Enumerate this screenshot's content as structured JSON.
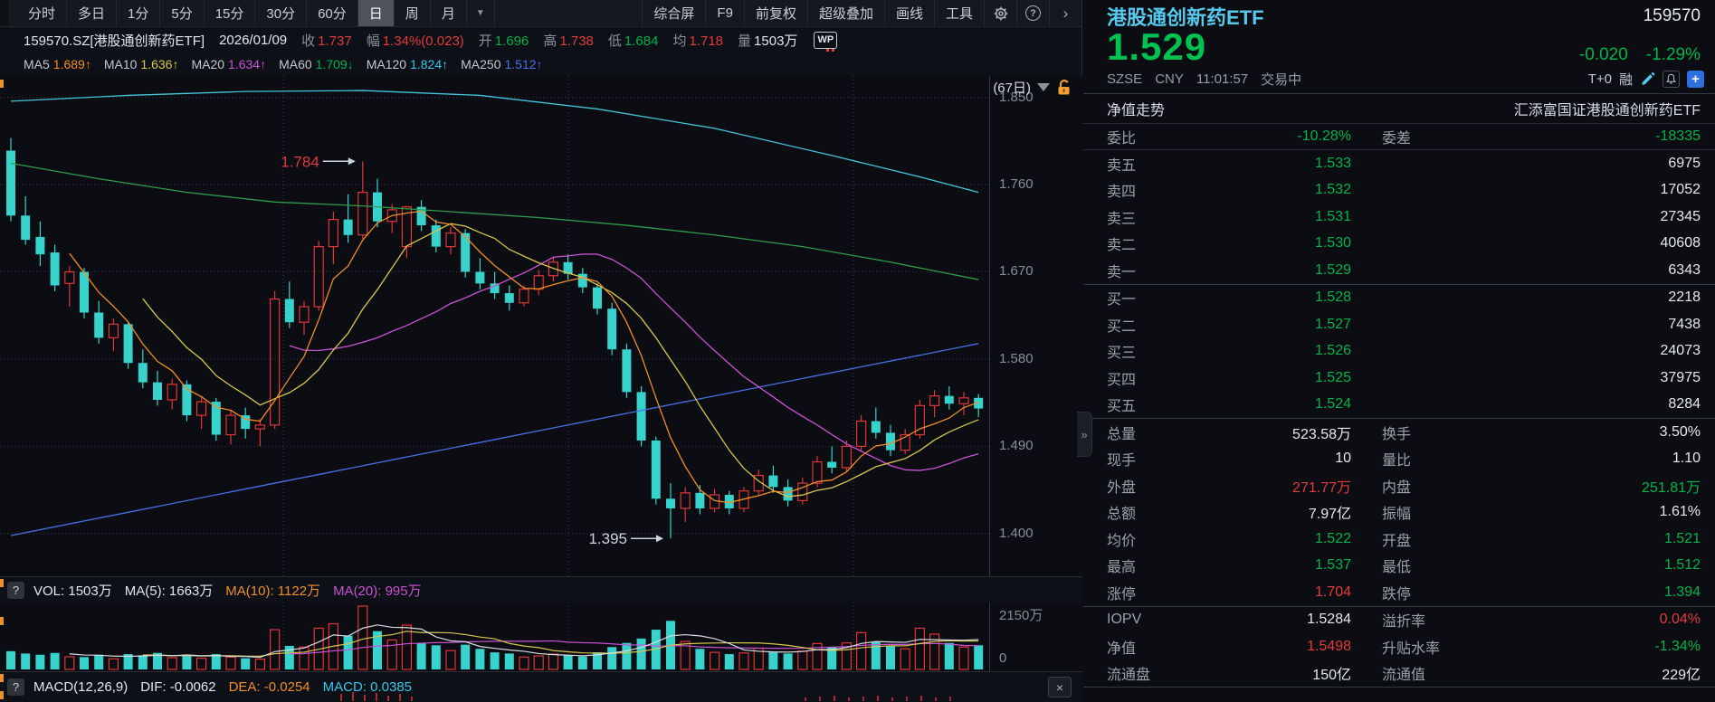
{
  "colors": {
    "red": "#e23b3c",
    "green": "#00b44b",
    "cyan_name": "#56c8ec",
    "big_price_green": "#00c14f",
    "orange": "#ef8e2a",
    "magenta": "#cb51d6",
    "macd_cyan": "#35c8e8"
  },
  "toolbar": {
    "periods": [
      "分时",
      "多日",
      "1分",
      "5分",
      "15分",
      "30分",
      "60分",
      "日",
      "周",
      "月"
    ],
    "selected": "日",
    "tools": [
      "综合屏",
      "F9",
      "前复权",
      "超级叠加",
      "画线",
      "工具"
    ],
    "icons": [
      "period-dropdown",
      "settings-gear",
      "help",
      "expand-chevron"
    ]
  },
  "info_row": {
    "symbol": "159570.SZ[港股通创新药ETF]",
    "date": "2026/01/09",
    "fields": [
      {
        "label": "收",
        "value": "1.737",
        "color": "red"
      },
      {
        "label": "幅",
        "value": "1.34%(0.023)",
        "color": "red"
      },
      {
        "label": "开",
        "value": "1.696",
        "color": "green"
      },
      {
        "label": "高",
        "value": "1.738",
        "color": "red"
      },
      {
        "label": "低",
        "value": "1.684",
        "color": "green"
      },
      {
        "label": "均",
        "value": "1.718",
        "color": "red"
      },
      {
        "label": "量",
        "value": "1503万",
        "color": "white"
      }
    ],
    "wp_icon": "WP"
  },
  "ma_row": {
    "items": [
      {
        "label": "MA5",
        "value": "1.689↑",
        "color": "orange"
      },
      {
        "label": "MA10",
        "value": "1.636↑",
        "color": "yellow"
      },
      {
        "label": "MA20",
        "value": "1.634↑",
        "color": "magenta"
      },
      {
        "label": "MA60",
        "value": "1.709↓",
        "color": "green"
      },
      {
        "label": "MA120",
        "value": "1.824↑",
        "color": "cyan"
      },
      {
        "label": "MA250",
        "value": "1.512↑",
        "color": "blue"
      }
    ],
    "range_label": "(67日)",
    "lock_icon": "unlocked-padlock"
  },
  "vol_header": {
    "help_icon": "?",
    "items": [
      {
        "label": "VOL:",
        "value": "1503万",
        "color": "white"
      },
      {
        "label": "MA(5):",
        "value": "1663万",
        "color": "white"
      },
      {
        "label": "MA(10):",
        "value": "1122万",
        "color": "orange"
      },
      {
        "label": "MA(20):",
        "value": "995万",
        "color": "magenta"
      }
    ]
  },
  "macd_header": {
    "help_icon": "?",
    "items": [
      {
        "label": "MACD(12,26,9)",
        "value": "",
        "color": "white"
      },
      {
        "label": "DIF:",
        "value": "-0.0062",
        "color": "white"
      },
      {
        "label": "DEA:",
        "value": "-0.0254",
        "color": "orange"
      },
      {
        "label": "MACD:",
        "value": "0.0385",
        "color": "cyan"
      }
    ],
    "close_icon": "×"
  },
  "panel": {
    "name": "港股通创新药ETF",
    "code": "159570",
    "price": "1.529",
    "change": "-0.020",
    "change_pct": "-1.29%",
    "exchange": "SZSE",
    "currency": "CNY",
    "time": "11:01:57",
    "status": "交易中",
    "tplus": "T+0",
    "margin_flag": "融",
    "nav_label": "净值走势",
    "fund_full_name": "汇添富国证港股通创新药ETF",
    "weibi_label": "委比",
    "weibi_value": "-10.28%",
    "weicha_label": "委差",
    "weicha_value": "-18335",
    "asks": [
      {
        "label": "卖五",
        "price": "1.533",
        "vol": "6975"
      },
      {
        "label": "卖四",
        "price": "1.532",
        "vol": "17052"
      },
      {
        "label": "卖三",
        "price": "1.531",
        "vol": "27345"
      },
      {
        "label": "卖二",
        "price": "1.530",
        "vol": "40608"
      },
      {
        "label": "卖一",
        "price": "1.529",
        "vol": "6343"
      }
    ],
    "bids": [
      {
        "label": "买一",
        "price": "1.528",
        "vol": "2218"
      },
      {
        "label": "买二",
        "price": "1.527",
        "vol": "7438"
      },
      {
        "label": "买三",
        "price": "1.526",
        "vol": "24073"
      },
      {
        "label": "买四",
        "price": "1.525",
        "vol": "37975"
      },
      {
        "label": "买五",
        "price": "1.524",
        "vol": "8284"
      }
    ],
    "stats1": [
      {
        "l1": "总量",
        "v1": "523.58万",
        "c1": "white",
        "l2": "换手",
        "v2": "3.50%",
        "c2": "white"
      },
      {
        "l1": "现手",
        "v1": "10",
        "c1": "white",
        "l2": "量比",
        "v2": "1.10",
        "c2": "white"
      },
      {
        "l1": "外盘",
        "v1": "271.77万",
        "c1": "red",
        "l2": "内盘",
        "v2": "251.81万",
        "c2": "green"
      },
      {
        "l1": "总额",
        "v1": "7.97亿",
        "c1": "white",
        "l2": "振幅",
        "v2": "1.61%",
        "c2": "white"
      },
      {
        "l1": "均价",
        "v1": "1.522",
        "c1": "green",
        "l2": "开盘",
        "v2": "1.521",
        "c2": "green"
      },
      {
        "l1": "最高",
        "v1": "1.537",
        "c1": "green",
        "l2": "最低",
        "v2": "1.512",
        "c2": "green"
      },
      {
        "l1": "涨停",
        "v1": "1.704",
        "c1": "red",
        "l2": "跌停",
        "v2": "1.394",
        "c2": "green"
      }
    ],
    "stats2": [
      {
        "l1": "IOPV",
        "v1": "1.5284",
        "c1": "white",
        "l2": "溢折率",
        "v2": "0.04%",
        "c2": "red"
      },
      {
        "l1": "净值",
        "v1": "1.5498",
        "c1": "red",
        "l2": "升贴水率",
        "v2": "-1.34%",
        "c2": "green"
      },
      {
        "l1": "流通盘",
        "v1": "150亿",
        "c1": "white",
        "l2": "流通值",
        "v2": "229亿",
        "c2": "white"
      }
    ],
    "collapse_handle": "»"
  },
  "chart_data": {
    "type": "candlestick+volume",
    "title": "159570.SZ 港股通创新药ETF 日K 67日",
    "ylim": [
      1.356,
      1.872
    ],
    "yticks": [
      1.85,
      1.76,
      1.67,
      1.58,
      1.49,
      1.4
    ],
    "vol_axis_labels": [
      "2150万",
      "0"
    ],
    "vol_max": 2150,
    "vgrid_x": [
      313,
      628,
      943
    ],
    "colors": {
      "up": "#e13537",
      "down": "#38d2cc",
      "ma5": "#ef8e2a",
      "ma10": "#d6c64f",
      "ma20": "#cb51d6",
      "ma60": "#2f9e4c",
      "ma120": "#45c5dd",
      "ma250": "#4a6fe8",
      "volma5": "#d8dce2",
      "grid": "#333944"
    },
    "candles": [
      [
        1.795,
        1.808,
        1.722,
        1.728,
        620
      ],
      [
        1.728,
        1.748,
        1.698,
        1.703,
        540
      ],
      [
        1.706,
        1.722,
        1.676,
        1.688,
        500
      ],
      [
        1.69,
        1.698,
        1.65,
        1.656,
        560
      ],
      [
        1.658,
        1.676,
        1.634,
        1.67,
        430
      ],
      [
        1.67,
        1.674,
        1.622,
        1.628,
        420
      ],
      [
        1.628,
        1.64,
        1.596,
        1.602,
        500
      ],
      [
        1.602,
        1.622,
        1.588,
        1.616,
        360
      ],
      [
        1.616,
        1.618,
        1.57,
        1.576,
        520
      ],
      [
        1.576,
        1.59,
        1.55,
        1.556,
        480
      ],
      [
        1.556,
        1.568,
        1.532,
        1.538,
        560
      ],
      [
        1.538,
        1.56,
        1.528,
        1.554,
        400
      ],
      [
        1.554,
        1.558,
        1.516,
        1.522,
        500
      ],
      [
        1.522,
        1.542,
        1.508,
        1.536,
        380
      ],
      [
        1.536,
        1.54,
        1.496,
        1.502,
        520
      ],
      [
        1.502,
        1.528,
        1.492,
        1.522,
        420
      ],
      [
        1.522,
        1.53,
        1.498,
        1.508,
        380
      ],
      [
        1.508,
        1.518,
        1.49,
        1.512,
        350
      ],
      [
        1.512,
        1.65,
        1.508,
        1.642,
        1350
      ],
      [
        1.642,
        1.66,
        1.612,
        1.618,
        800
      ],
      [
        1.618,
        1.64,
        1.605,
        1.634,
        760
      ],
      [
        1.634,
        1.702,
        1.63,
        1.696,
        1400
      ],
      [
        1.696,
        1.732,
        1.678,
        1.724,
        1550
      ],
      [
        1.724,
        1.75,
        1.7,
        1.708,
        1150
      ],
      [
        1.708,
        1.784,
        1.704,
        1.752,
        2150
      ],
      [
        1.752,
        1.766,
        1.716,
        1.722,
        1300
      ],
      [
        1.722,
        1.74,
        1.71,
        1.734,
        1000
      ],
      [
        1.696,
        1.738,
        1.684,
        1.737,
        1503
      ],
      [
        1.737,
        1.744,
        1.712,
        1.718,
        900
      ],
      [
        1.718,
        1.724,
        1.69,
        1.696,
        820
      ],
      [
        1.696,
        1.716,
        1.688,
        1.71,
        640
      ],
      [
        1.71,
        1.714,
        1.664,
        1.67,
        840
      ],
      [
        1.67,
        1.684,
        1.652,
        1.658,
        700
      ],
      [
        1.658,
        1.67,
        1.642,
        1.648,
        580
      ],
      [
        1.648,
        1.656,
        1.63,
        1.638,
        540
      ],
      [
        1.638,
        1.656,
        1.634,
        1.652,
        420
      ],
      [
        1.652,
        1.672,
        1.646,
        1.666,
        460
      ],
      [
        1.666,
        1.686,
        1.66,
        1.68,
        520
      ],
      [
        1.68,
        1.688,
        1.662,
        1.668,
        480
      ],
      [
        1.668,
        1.674,
        1.648,
        1.654,
        440
      ],
      [
        1.654,
        1.658,
        1.626,
        1.632,
        580
      ],
      [
        1.632,
        1.638,
        1.584,
        1.59,
        760
      ],
      [
        1.59,
        1.596,
        1.54,
        1.546,
        900
      ],
      [
        1.546,
        1.552,
        1.49,
        1.496,
        1050
      ],
      [
        1.496,
        1.5,
        1.43,
        1.436,
        1350
      ],
      [
        1.436,
        1.452,
        1.395,
        1.426,
        1650
      ],
      [
        1.426,
        1.448,
        1.412,
        1.442,
        950
      ],
      [
        1.442,
        1.45,
        1.42,
        1.426,
        700
      ],
      [
        1.426,
        1.446,
        1.422,
        1.44,
        580
      ],
      [
        1.44,
        1.444,
        1.42,
        1.426,
        520
      ],
      [
        1.426,
        1.448,
        1.422,
        1.444,
        560
      ],
      [
        1.444,
        1.466,
        1.44,
        1.46,
        720
      ],
      [
        1.46,
        1.47,
        1.442,
        1.448,
        600
      ],
      [
        1.448,
        1.456,
        1.428,
        1.434,
        540
      ],
      [
        1.434,
        1.458,
        1.43,
        1.452,
        620
      ],
      [
        1.452,
        1.48,
        1.448,
        1.474,
        880
      ],
      [
        1.474,
        1.49,
        1.462,
        1.468,
        760
      ],
      [
        1.468,
        1.496,
        1.464,
        1.49,
        900
      ],
      [
        1.49,
        1.522,
        1.486,
        1.516,
        1250
      ],
      [
        1.516,
        1.53,
        1.498,
        1.504,
        950
      ],
      [
        1.504,
        1.512,
        1.48,
        1.486,
        800
      ],
      [
        1.486,
        1.508,
        1.482,
        1.502,
        700
      ],
      [
        1.502,
        1.538,
        1.498,
        1.532,
        1400
      ],
      [
        1.532,
        1.548,
        1.52,
        1.542,
        1200
      ],
      [
        1.542,
        1.552,
        1.528,
        1.534,
        900
      ],
      [
        1.534,
        1.546,
        1.522,
        1.54,
        760
      ],
      [
        1.54,
        1.544,
        1.52,
        1.529,
        820
      ]
    ],
    "ma_lines": [
      {
        "name": "MA250",
        "color": "#4a6fe8",
        "points": [
          [
            0,
            1.398
          ],
          [
            10,
            1.428
          ],
          [
            20,
            1.458
          ],
          [
            30,
            1.488
          ],
          [
            40,
            1.518
          ],
          [
            50,
            1.548
          ],
          [
            58,
            1.572
          ],
          [
            66,
            1.596
          ]
        ]
      },
      {
        "name": "MA120",
        "color": "#45c5dd",
        "points": [
          [
            0,
            1.846
          ],
          [
            8,
            1.852
          ],
          [
            16,
            1.856
          ],
          [
            24,
            1.857
          ],
          [
            32,
            1.852
          ],
          [
            40,
            1.838
          ],
          [
            48,
            1.818
          ],
          [
            56,
            1.79
          ],
          [
            62,
            1.768
          ],
          [
            66,
            1.752
          ]
        ]
      },
      {
        "name": "MA60",
        "color": "#2f9e4c",
        "points": [
          [
            0,
            1.782
          ],
          [
            6,
            1.766
          ],
          [
            12,
            1.752
          ],
          [
            18,
            1.742
          ],
          [
            24,
            1.738
          ],
          [
            30,
            1.732
          ],
          [
            36,
            1.726
          ],
          [
            42,
            1.718
          ],
          [
            48,
            1.708
          ],
          [
            54,
            1.696
          ],
          [
            60,
            1.68
          ],
          [
            66,
            1.662
          ]
        ]
      }
    ],
    "callouts": [
      {
        "label": "1.784",
        "day": 24,
        "price": 1.784,
        "color": "#e23b3c"
      },
      {
        "label": "1.395",
        "day": 45,
        "price": 1.395,
        "color": "#cfd3da"
      }
    ],
    "macd_ticks": [
      [
        377,
        8
      ],
      [
        390,
        10
      ],
      [
        403,
        7
      ],
      [
        416,
        9
      ],
      [
        429,
        6
      ],
      [
        442,
        8
      ],
      [
        455,
        5
      ],
      [
        890,
        4
      ],
      [
        906,
        5
      ],
      [
        922,
        6
      ],
      [
        938,
        4
      ],
      [
        954,
        5
      ],
      [
        970,
        6
      ],
      [
        986,
        4
      ],
      [
        1002,
        5
      ],
      [
        1018,
        6
      ],
      [
        1034,
        4
      ],
      [
        1050,
        5
      ]
    ]
  }
}
